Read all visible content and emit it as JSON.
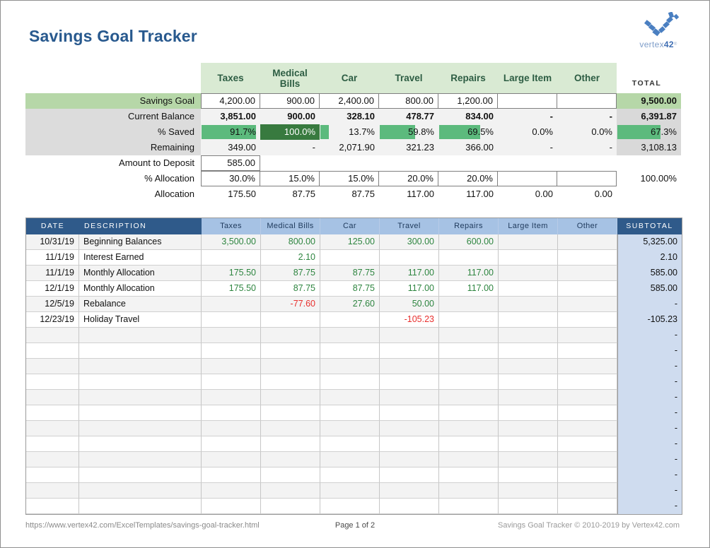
{
  "page": {
    "title": "Savings Goal Tracker"
  },
  "logo": {
    "icon": "vertex42-v-icon",
    "text": "vertex",
    "number": "42",
    "registered": "®"
  },
  "colors": {
    "title_blue": "#28598e",
    "header_green_bg": "#d9ead3",
    "header_green_text": "#2d5d43",
    "label_green_bg": "#b6d7a8",
    "label_gray_bg": "#dcdcdc",
    "row_gray_bg": "#f2f2f2",
    "total_gray_bg": "#d9d9d9",
    "databar_green": "#5cba7d",
    "databar_dark_green": "#387a3f",
    "txn_header_dark_blue": "#2f5a8a",
    "txn_header_light_blue": "#a6c2e4",
    "subtotal_col_bg": "#cfdcef",
    "positive_text": "#2e8540",
    "negative_text": "#e8302e",
    "logo_blue": "#4a7fc1"
  },
  "summary": {
    "columns": [
      "Taxes",
      "Medical Bills",
      "Car",
      "Travel",
      "Repairs",
      "Large Item",
      "Other"
    ],
    "total_label": "TOTAL",
    "rows": {
      "savings_goal": {
        "label": "Savings Goal",
        "values": [
          "4,200.00",
          "900.00",
          "2,400.00",
          "800.00",
          "1,200.00",
          "",
          ""
        ],
        "total": "9,500.00"
      },
      "current_balance": {
        "label": "Current Balance",
        "values": [
          "3,851.00",
          "900.00",
          "328.10",
          "478.77",
          "834.00",
          "-",
          "-"
        ],
        "total": "6,391.87"
      },
      "pct_saved": {
        "label": "% Saved",
        "values": [
          "91.7%",
          "100.0%",
          "13.7%",
          "59.8%",
          "69.5%",
          "0.0%",
          "0.0%"
        ],
        "percents": [
          91.7,
          100,
          13.7,
          59.8,
          69.5,
          0,
          0
        ],
        "total": "67.3%",
        "total_percent": 67.3
      },
      "remaining": {
        "label": "Remaining",
        "values": [
          "349.00",
          "-",
          "2,071.90",
          "321.23",
          "366.00",
          "-",
          "-"
        ],
        "total": "3,108.13"
      },
      "amount_to_deposit": {
        "label": "Amount to Deposit",
        "values": [
          "585.00",
          "",
          "",
          "",
          "",
          "",
          ""
        ],
        "total": ""
      },
      "pct_allocation": {
        "label": "% Allocation",
        "values": [
          "30.0%",
          "15.0%",
          "15.0%",
          "20.0%",
          "20.0%",
          "",
          ""
        ],
        "total": "100.00%"
      },
      "allocation": {
        "label": "Allocation",
        "values": [
          "175.50",
          "87.75",
          "87.75",
          "117.00",
          "117.00",
          "0.00",
          "0.00"
        ],
        "total": ""
      }
    }
  },
  "transactions": {
    "headers": {
      "date": "DATE",
      "description": "DESCRIPTION",
      "categories": [
        "Taxes",
        "Medical Bills",
        "Car",
        "Travel",
        "Repairs",
        "Large Item",
        "Other"
      ],
      "subtotal": "SUBTOTAL"
    },
    "rows": [
      {
        "date": "10/31/19",
        "description": "Beginning Balances",
        "values": [
          "3,500.00",
          "800.00",
          "125.00",
          "300.00",
          "600.00",
          "",
          ""
        ],
        "subtotal": "5,325.00"
      },
      {
        "date": "11/1/19",
        "description": "Interest Earned",
        "values": [
          "",
          "2.10",
          "",
          "",
          "",
          "",
          ""
        ],
        "subtotal": "2.10"
      },
      {
        "date": "11/1/19",
        "description": "Monthly Allocation",
        "values": [
          "175.50",
          "87.75",
          "87.75",
          "117.00",
          "117.00",
          "",
          ""
        ],
        "subtotal": "585.00"
      },
      {
        "date": "12/1/19",
        "description": "Monthly Allocation",
        "values": [
          "175.50",
          "87.75",
          "87.75",
          "117.00",
          "117.00",
          "",
          ""
        ],
        "subtotal": "585.00"
      },
      {
        "date": "12/5/19",
        "description": "Rebalance",
        "values": [
          "",
          "-77.60",
          "27.60",
          "50.00",
          "",
          "",
          ""
        ],
        "subtotal": "-"
      },
      {
        "date": "12/23/19",
        "description": "Holiday Travel",
        "values": [
          "",
          "",
          "",
          "-105.23",
          "",
          "",
          ""
        ],
        "subtotal": "-105.23"
      }
    ],
    "empty_row_count": 12,
    "empty_subtotal": "-"
  },
  "footer": {
    "url": "https://www.vertex42.com/ExcelTemplates/savings-goal-tracker.html",
    "page": "Page 1 of 2",
    "copyright": "Savings Goal Tracker © 2010-2019 by Vertex42.com"
  }
}
